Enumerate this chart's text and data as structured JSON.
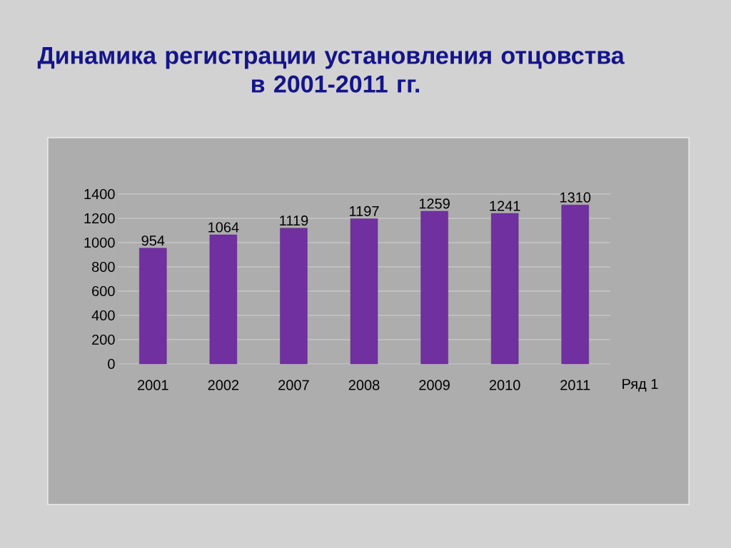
{
  "chart_data": {
    "type": "bar",
    "title": "Динамика регистрации установления отцовства в 2001-2011 гг.",
    "categories": [
      "2001",
      "2002",
      "2007",
      "2008",
      "2009",
      "2010",
      "2011"
    ],
    "series": [
      {
        "name": "Ряд 1",
        "color": "#7030a0",
        "values": [
          954,
          1064,
          1119,
          1197,
          1259,
          1241,
          1310
        ]
      }
    ],
    "ylim": [
      0,
      1400
    ],
    "yticks": [
      0,
      200,
      400,
      600,
      800,
      1000,
      1200,
      1400
    ],
    "grid": "y",
    "data_labels": true
  }
}
